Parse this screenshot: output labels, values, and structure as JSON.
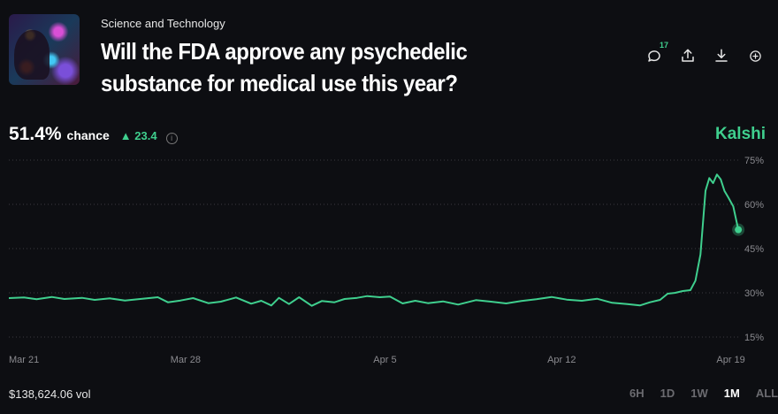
{
  "header": {
    "category": "Science and Technology",
    "title": "Will the FDA approve any psychedelic substance for medical use this year?"
  },
  "actions": {
    "comments_count": "17",
    "icons": [
      "comment-icon",
      "share-icon",
      "download-icon",
      "add-circle-icon"
    ]
  },
  "stat": {
    "probability": "51.4%",
    "chance_label": "chance",
    "change": "▲ 23.4",
    "info_glyph": "i"
  },
  "brand": "Kalshi",
  "footer": {
    "volume": "$138,624.06 vol",
    "ranges": [
      "6H",
      "1D",
      "1W",
      "1M",
      "ALL"
    ],
    "active_range": "1M"
  },
  "colors": {
    "accent": "#3fcf8e",
    "background": "#0d0e12",
    "grid": "#3a3b40"
  },
  "chart_data": {
    "type": "line",
    "y_ticks": [
      "75%",
      "60%",
      "45%",
      "30%",
      "15%"
    ],
    "y_tick_values": [
      75,
      60,
      45,
      30,
      15
    ],
    "ylim": [
      15,
      75
    ],
    "x_ticks": [
      "Mar 21",
      "Mar 28",
      "Apr 5",
      "Apr 12",
      "Apr 19"
    ],
    "xlim": [
      0,
      29
    ],
    "x_tick_positions": [
      0,
      7,
      14.9,
      21.9,
      28.6
    ],
    "series": [
      {
        "x": [
          0,
          0.6,
          1.1,
          1.7,
          2.2,
          2.9,
          3.4,
          4.0,
          4.6,
          5.2,
          5.9,
          6.3,
          6.8,
          7.3,
          7.9,
          8.4,
          9.0,
          9.6,
          10.0,
          10.4,
          10.7,
          11.1,
          11.5,
          12.0,
          12.4,
          12.9,
          13.3,
          13.8,
          14.2,
          14.7,
          15.1,
          15.6,
          16.1,
          16.6,
          17.2,
          17.8,
          18.5,
          19.1,
          19.7,
          20.3,
          20.9,
          21.5,
          22.1,
          22.7,
          23.3,
          23.9,
          24.5,
          25.0,
          25.4,
          25.8,
          26.1,
          26.4,
          26.7,
          27.0,
          27.2,
          27.4,
          27.6,
          27.75,
          27.9,
          28.05,
          28.2,
          28.35,
          28.5,
          28.7,
          28.9
        ],
        "y": [
          28.2,
          28.4,
          27.8,
          28.6,
          27.9,
          28.3,
          27.6,
          28.1,
          27.4,
          27.9,
          28.5,
          26.8,
          27.4,
          28.2,
          26.5,
          27.0,
          28.4,
          26.3,
          27.3,
          25.7,
          28.3,
          26.2,
          28.5,
          25.6,
          27.2,
          26.8,
          27.9,
          28.3,
          28.9,
          28.5,
          28.7,
          26.4,
          27.3,
          26.5,
          27.1,
          26.0,
          27.5,
          27.0,
          26.4,
          27.2,
          27.8,
          28.6,
          27.7,
          27.3,
          28.0,
          26.6,
          26.2,
          25.7,
          26.8,
          27.6,
          29.7,
          30.0,
          30.6,
          30.9,
          34.1,
          43.0,
          64.6,
          68.9,
          67.2,
          70.1,
          68.5,
          64.6,
          62.4,
          59.3,
          51.4
        ]
      }
    ],
    "end_value": 51.4
  }
}
